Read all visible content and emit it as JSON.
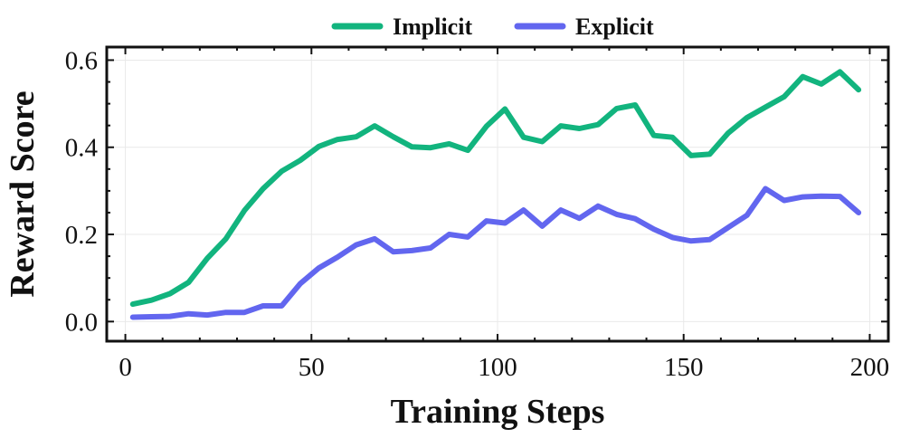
{
  "chart_data": {
    "type": "line",
    "xlabel": "Training Steps",
    "ylabel": "Reward Score",
    "xlim": [
      -5,
      205
    ],
    "ylim": [
      -0.045,
      0.63
    ],
    "xticks": [
      0,
      50,
      100,
      150,
      200
    ],
    "yticks": [
      0.0,
      0.2,
      0.4,
      0.6
    ],
    "ytick_labels": [
      "0.0",
      "0.2",
      "0.4",
      "0.6"
    ],
    "grid": true,
    "legend": "top-center, outside plot",
    "x": [
      2,
      7,
      12,
      17,
      22,
      27,
      32,
      37,
      42,
      47,
      52,
      57,
      62,
      67,
      72,
      77,
      82,
      87,
      92,
      97,
      102,
      107,
      112,
      117,
      122,
      127,
      132,
      137,
      142,
      147,
      152,
      157,
      162,
      167,
      172,
      177,
      182,
      187,
      192,
      197
    ],
    "series": [
      {
        "name": "Implicit",
        "color": "#12b47e",
        "values": [
          0.04,
          0.049,
          0.064,
          0.09,
          0.145,
          0.19,
          0.255,
          0.305,
          0.345,
          0.37,
          0.402,
          0.418,
          0.424,
          0.449,
          0.424,
          0.401,
          0.399,
          0.408,
          0.393,
          0.448,
          0.488,
          0.423,
          0.413,
          0.449,
          0.443,
          0.452,
          0.489,
          0.497,
          0.427,
          0.423,
          0.381,
          0.384,
          0.433,
          0.468,
          0.492,
          0.516,
          0.562,
          0.545,
          0.573,
          0.532
        ]
      },
      {
        "name": "Explicit",
        "color": "#6266ef",
        "values": [
          0.01,
          0.011,
          0.012,
          0.018,
          0.015,
          0.021,
          0.021,
          0.036,
          0.036,
          0.087,
          0.123,
          0.148,
          0.176,
          0.19,
          0.16,
          0.163,
          0.169,
          0.2,
          0.194,
          0.231,
          0.226,
          0.256,
          0.219,
          0.256,
          0.237,
          0.265,
          0.246,
          0.236,
          0.212,
          0.193,
          0.185,
          0.188,
          0.216,
          0.244,
          0.305,
          0.278,
          0.286,
          0.288,
          0.287,
          0.25
        ]
      }
    ]
  }
}
